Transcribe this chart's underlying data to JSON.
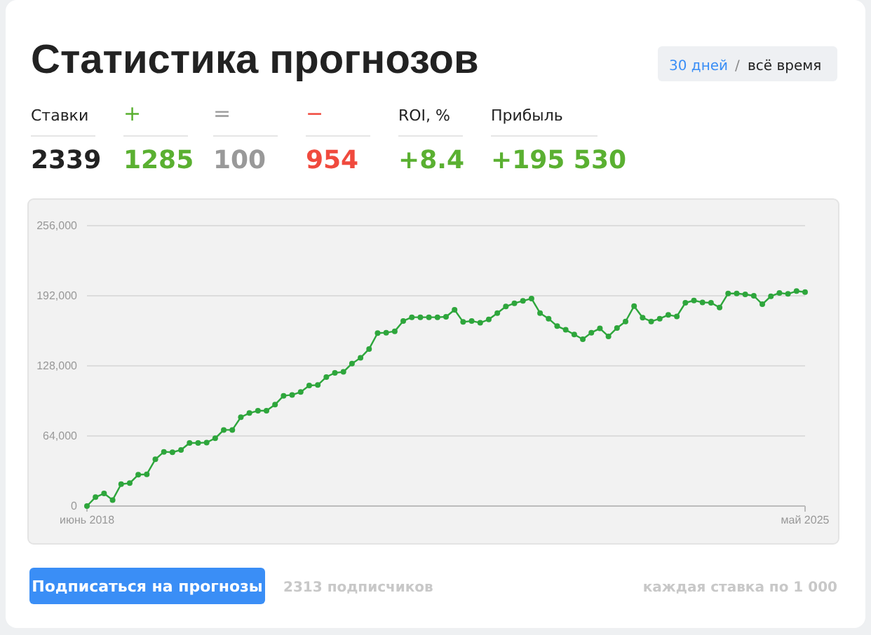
{
  "chart_data": {
    "type": "line",
    "title": "Статистика прогнозов",
    "categories": [
      "июнь 2018",
      null,
      null,
      null,
      null,
      null,
      null,
      null,
      null,
      null,
      null,
      null,
      null,
      null,
      null,
      null,
      null,
      null,
      null,
      null,
      null,
      null,
      null,
      null,
      null,
      null,
      null,
      null,
      null,
      null,
      null,
      null,
      null,
      null,
      null,
      null,
      null,
      null,
      null,
      null,
      null,
      null,
      null,
      null,
      null,
      null,
      null,
      null,
      null,
      null,
      null,
      null,
      null,
      null,
      null,
      null,
      null,
      null,
      null,
      null,
      null,
      null,
      null,
      null,
      null,
      null,
      null,
      null,
      null,
      null,
      null,
      null,
      null,
      null,
      null,
      null,
      null,
      null,
      null,
      null,
      null,
      null,
      null,
      null,
      "май 2025"
    ],
    "series": [
      {
        "color": "#2ea63c",
        "values": [
          0,
          8100,
          11500,
          5500,
          20000,
          20900,
          28600,
          29000,
          42700,
          49500,
          49100,
          51200,
          57600,
          57600,
          58000,
          61900,
          69500,
          69500,
          81100,
          84900,
          87000,
          87000,
          92600,
          100700,
          101500,
          104100,
          110100,
          110500,
          117800,
          121600,
          122500,
          130100,
          135300,
          143400,
          157900,
          158300,
          159600,
          169000,
          172400,
          172400,
          172400,
          172400,
          172800,
          179200,
          168100,
          169000,
          167300,
          170400,
          176200,
          182200,
          185200,
          187300,
          189500,
          176200,
          171100,
          164300,
          160900,
          156600,
          152300,
          158300,
          162200,
          154900,
          162600,
          168500,
          182600,
          172000,
          168500,
          171100,
          174500,
          173200,
          185600,
          187700,
          186000,
          185600,
          181300,
          194100,
          194100,
          193300,
          192000,
          184300,
          191600,
          194600,
          193700,
          196300,
          195400
        ]
      }
    ],
    "ylim": [
      0,
      256000
    ],
    "yticks": [
      {
        "value": 0,
        "label": "0"
      },
      {
        "value": 64000,
        "label": "64,000"
      },
      {
        "value": 128000,
        "label": "128,000"
      },
      {
        "value": 192000,
        "label": "192,000"
      },
      {
        "value": 256000,
        "label": "256,000"
      }
    ],
    "grid": "y",
    "marker": "circle",
    "line_style": "solid",
    "annotations": [
      "30 дней",
      "/",
      "всё время",
      "Ставки",
      "2339",
      "+",
      "1285",
      "=",
      "100",
      "−",
      "954",
      "ROI, %",
      "+8.4",
      "Прибыль",
      "+195 530",
      "Подписаться на прогнозы",
      "2313 подписчиков",
      "каждая ставка по 1 000"
    ]
  }
}
